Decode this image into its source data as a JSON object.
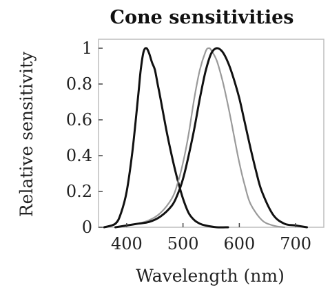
{
  "chart_data": {
    "type": "line",
    "title": "Cone sensitivities",
    "xlabel": "Wavelength (nm)",
    "ylabel": "Relative sensitivity",
    "xlim": [
      350,
      750
    ],
    "ylim": [
      0,
      1.05
    ],
    "xticks": [
      400,
      500,
      600,
      700
    ],
    "yticks": [
      0,
      0.2,
      0.4,
      0.6,
      0.8,
      1
    ],
    "ytick_labels": [
      "0",
      "0.2",
      "0.4",
      "0.6",
      "0.8",
      "1"
    ],
    "grid": false,
    "legend": "none",
    "series": [
      {
        "color": "#111111",
        "x": [
          360,
          380,
          390,
          400,
          410,
          420,
          425,
          430,
          435,
          440,
          445,
          450,
          455,
          460,
          470,
          480,
          490,
          500,
          510,
          520,
          530,
          540,
          560,
          580
        ],
        "y": [
          0.0,
          0.02,
          0.08,
          0.2,
          0.42,
          0.72,
          0.88,
          0.98,
          1.0,
          0.97,
          0.92,
          0.88,
          0.8,
          0.72,
          0.55,
          0.4,
          0.27,
          0.16,
          0.08,
          0.04,
          0.02,
          0.01,
          0.0,
          0.0
        ]
      },
      {
        "color": "#9a9a9a",
        "x": [
          380,
          400,
          420,
          440,
          460,
          480,
          490,
          500,
          510,
          520,
          530,
          540,
          545,
          550,
          560,
          570,
          580,
          590,
          600,
          610,
          620,
          640,
          660,
          680
        ],
        "y": [
          0.0,
          0.01,
          0.02,
          0.04,
          0.08,
          0.16,
          0.24,
          0.36,
          0.52,
          0.72,
          0.88,
          0.98,
          1.0,
          0.99,
          0.93,
          0.82,
          0.68,
          0.52,
          0.36,
          0.23,
          0.13,
          0.04,
          0.01,
          0.0
        ]
      },
      {
        "color": "#111111",
        "x": [
          380,
          400,
          420,
          440,
          460,
          480,
          490,
          500,
          510,
          520,
          530,
          540,
          550,
          560,
          570,
          580,
          590,
          600,
          610,
          620,
          630,
          640,
          660,
          680,
          700,
          720
        ],
        "y": [
          0.0,
          0.01,
          0.02,
          0.03,
          0.06,
          0.12,
          0.18,
          0.27,
          0.4,
          0.55,
          0.72,
          0.87,
          0.97,
          1.0,
          0.98,
          0.92,
          0.83,
          0.72,
          0.58,
          0.44,
          0.31,
          0.2,
          0.07,
          0.02,
          0.01,
          0.0
        ]
      }
    ]
  }
}
